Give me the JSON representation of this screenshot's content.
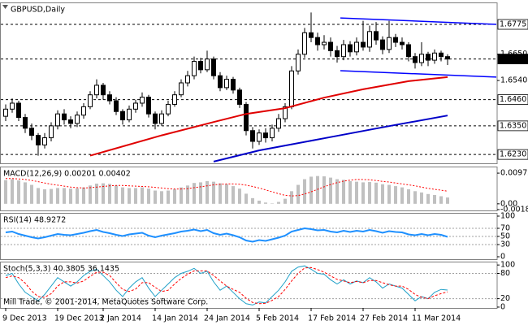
{
  "chart_data": [
    {
      "type": "candlestick",
      "title": "GBPUSD,Daily",
      "open": [
        1.639,
        1.642,
        1.6445,
        1.6385,
        1.634,
        1.631,
        1.627,
        1.63,
        1.635,
        1.64,
        1.6375,
        1.636,
        1.6395,
        1.643,
        1.648,
        1.652,
        1.648,
        1.6455,
        1.641,
        1.6375,
        1.642,
        1.6445,
        1.647,
        1.64,
        1.636,
        1.64,
        1.644,
        1.648,
        1.653,
        1.656,
        1.662,
        1.6585,
        1.663,
        1.656,
        1.651,
        1.6545,
        1.65,
        1.644,
        1.633,
        1.6285,
        1.632,
        1.63,
        1.634,
        1.638,
        1.643,
        1.658,
        1.665,
        1.674,
        1.672,
        1.669,
        1.67,
        1.6665,
        1.664,
        1.669,
        1.666,
        1.67,
        1.668,
        1.6745,
        1.671,
        1.667,
        1.672,
        1.67,
        1.669,
        1.664,
        1.6615,
        1.665,
        1.6625,
        1.6655,
        1.664
      ],
      "high": [
        1.644,
        1.6465,
        1.6455,
        1.64,
        1.636,
        1.632,
        1.632,
        1.6365,
        1.6415,
        1.642,
        1.639,
        1.641,
        1.6445,
        1.6495,
        1.6545,
        1.653,
        1.6495,
        1.647,
        1.642,
        1.6435,
        1.646,
        1.649,
        1.648,
        1.641,
        1.6415,
        1.6455,
        1.6495,
        1.6545,
        1.658,
        1.664,
        1.6635,
        1.6665,
        1.664,
        1.6575,
        1.656,
        1.6555,
        1.651,
        1.645,
        1.6345,
        1.6335,
        1.634,
        1.6355,
        1.64,
        1.6445,
        1.66,
        1.667,
        1.676,
        1.6825,
        1.674,
        1.673,
        1.672,
        1.6685,
        1.671,
        1.6705,
        1.672,
        1.679,
        1.677,
        1.6785,
        1.6725,
        1.679,
        1.6735,
        1.672,
        1.67,
        1.6655,
        1.67,
        1.666,
        1.667,
        1.6665,
        1.665
      ],
      "low": [
        1.637,
        1.6405,
        1.637,
        1.632,
        1.629,
        1.6225,
        1.6255,
        1.6285,
        1.6335,
        1.6355,
        1.634,
        1.6345,
        1.638,
        1.642,
        1.6465,
        1.646,
        1.644,
        1.6395,
        1.6355,
        1.6365,
        1.6405,
        1.643,
        1.6385,
        1.6335,
        1.635,
        1.639,
        1.643,
        1.647,
        1.6515,
        1.6545,
        1.657,
        1.6575,
        1.6545,
        1.6495,
        1.65,
        1.6485,
        1.6425,
        1.631,
        1.6255,
        1.627,
        1.628,
        1.6285,
        1.6325,
        1.6365,
        1.642,
        1.6565,
        1.6635,
        1.67,
        1.6665,
        1.667,
        1.664,
        1.6615,
        1.6625,
        1.664,
        1.6645,
        1.6665,
        1.666,
        1.669,
        1.665,
        1.6655,
        1.668,
        1.667,
        1.662,
        1.659,
        1.66,
        1.66,
        1.661,
        1.662,
        1.6605
      ],
      "close": [
        1.642,
        1.6445,
        1.6385,
        1.634,
        1.631,
        1.627,
        1.63,
        1.635,
        1.64,
        1.6375,
        1.636,
        1.6395,
        1.643,
        1.648,
        1.652,
        1.648,
        1.6455,
        1.641,
        1.6375,
        1.642,
        1.6445,
        1.647,
        1.64,
        1.636,
        1.64,
        1.644,
        1.648,
        1.653,
        1.656,
        1.662,
        1.6585,
        1.663,
        1.656,
        1.651,
        1.6545,
        1.65,
        1.644,
        1.633,
        1.6285,
        1.632,
        1.63,
        1.634,
        1.638,
        1.643,
        1.658,
        1.665,
        1.674,
        1.672,
        1.669,
        1.67,
        1.6665,
        1.664,
        1.669,
        1.666,
        1.67,
        1.668,
        1.6745,
        1.671,
        1.667,
        1.672,
        1.67,
        1.669,
        1.664,
        1.6615,
        1.665,
        1.6625,
        1.6655,
        1.664,
        1.663
      ],
      "ylim": [
        1.6193,
        1.6867
      ],
      "yticks": [
        {
          "value": 1.665,
          "label": "1.6650"
        },
        {
          "value": 1.654,
          "label": "1.6540"
        }
      ],
      "levels": [
        {
          "value": 1.6775,
          "label": "1.6775"
        },
        {
          "value": 1.663,
          "label": "1.6630",
          "current": true
        },
        {
          "value": 1.646,
          "label": "1.6460"
        },
        {
          "value": 1.635,
          "label": "1.6350"
        },
        {
          "value": 1.623,
          "label": "1.6230"
        }
      ],
      "series": [
        {
          "color": "#e00000",
          "x": [
            13,
            24,
            32,
            37,
            43,
            49,
            55,
            62,
            68
          ],
          "values": [
            1.6225,
            1.631,
            1.6366,
            1.64,
            1.6424,
            1.6468,
            1.6503,
            1.6537,
            1.6554
          ]
        },
        {
          "color": "#0000c8",
          "x": [
            32,
            39,
            49,
            59,
            68
          ],
          "values": [
            1.62,
            1.6247,
            1.6298,
            1.6349,
            1.6393
          ]
        }
      ],
      "trendlines": [
        {
          "color": "#0000ff",
          "x": [
            51.5,
            75.5
          ],
          "values": [
            1.6802,
            1.6775
          ]
        },
        {
          "color": "#0000ff",
          "x": [
            51.5,
            75.5
          ],
          "values": [
            1.6581,
            1.6554
          ]
        }
      ]
    },
    {
      "type": "macd",
      "title": "MACD(12,26,9) 0.00201 0.00402",
      "ylim": [
        -0.0021,
        0.0118
      ],
      "yticks": [
        0.00972,
        {
          "value": 0,
          "label": "0.00"
        },
        -0.00183
      ],
      "series": [
        {
          "color": "#c0c0c0",
          "style": "histogram",
          "values": [
            0.0075,
            0.0078,
            0.0074,
            0.0068,
            0.006,
            0.005,
            0.0046,
            0.0047,
            0.005,
            0.005,
            0.0048,
            0.0049,
            0.0052,
            0.0058,
            0.0064,
            0.0065,
            0.0063,
            0.0058,
            0.0052,
            0.005,
            0.005,
            0.0052,
            0.0048,
            0.0042,
            0.004,
            0.0042,
            0.0046,
            0.0052,
            0.0058,
            0.0066,
            0.0068,
            0.0072,
            0.007,
            0.0065,
            0.0062,
            0.0056,
            0.0048,
            0.0032,
            0.0018,
            0.001,
            0.0004,
            0.0001,
            0.0006,
            0.0016,
            0.004,
            0.006,
            0.0078,
            0.0086,
            0.0088,
            0.0087,
            0.0083,
            0.0078,
            0.0076,
            0.0072,
            0.007,
            0.0068,
            0.0069,
            0.0067,
            0.0062,
            0.006,
            0.0056,
            0.0052,
            0.0046,
            0.004,
            0.0036,
            0.0031,
            0.0028,
            0.0024,
            0.002
          ]
        },
        {
          "color": "#ff0000",
          "style": "dotted",
          "values": [
            0.008,
            0.008,
            0.0079,
            0.0077,
            0.0074,
            0.007,
            0.0066,
            0.0062,
            0.0059,
            0.0056,
            0.0053,
            0.0051,
            0.005,
            0.0051,
            0.0053,
            0.0055,
            0.0057,
            0.0058,
            0.0058,
            0.0057,
            0.0056,
            0.0055,
            0.0054,
            0.0052,
            0.005,
            0.0048,
            0.0047,
            0.0047,
            0.0048,
            0.0051,
            0.0054,
            0.0057,
            0.006,
            0.0062,
            0.0063,
            0.0063,
            0.0062,
            0.0059,
            0.0055,
            0.005,
            0.0044,
            0.0038,
            0.0032,
            0.0027,
            0.0025,
            0.0026,
            0.0031,
            0.0038,
            0.0046,
            0.0054,
            0.0061,
            0.0067,
            0.0072,
            0.0075,
            0.0077,
            0.0077,
            0.0076,
            0.0074,
            0.0071,
            0.0069,
            0.0066,
            0.0063,
            0.006,
            0.0057,
            0.0053,
            0.0049,
            0.0046,
            0.0043,
            0.004
          ]
        }
      ]
    },
    {
      "type": "line",
      "title": "RSI(14) 48.9272",
      "ylim": [
        -6,
        108
      ],
      "yticks": [
        100,
        70,
        50,
        30,
        0
      ],
      "levels": [
        70,
        50,
        30
      ],
      "series": [
        {
          "color": "#1e90ff",
          "style": "solid",
          "values": [
            60,
            62,
            56,
            52,
            48,
            45,
            48,
            52,
            56,
            54,
            53,
            56,
            59,
            63,
            66,
            61,
            58,
            54,
            51,
            55,
            57,
            59,
            52,
            48,
            52,
            55,
            58,
            62,
            64,
            67,
            63,
            66,
            58,
            54,
            57,
            53,
            48,
            40,
            37,
            41,
            39,
            43,
            47,
            52,
            62,
            66,
            70,
            68,
            65,
            66,
            62,
            60,
            64,
            61,
            64,
            62,
            66,
            63,
            59,
            63,
            61,
            60,
            55,
            53,
            56,
            53,
            56,
            54,
            48.9272
          ]
        }
      ]
    },
    {
      "type": "line",
      "title": "Stoch(5,3,3) 40.3805 36.1435",
      "annotation": "Mill Trade, © 2001-2014, MetaQuotes Software Corp.",
      "ylim": [
        -2,
        108
      ],
      "yticks": [
        100,
        80,
        20,
        0
      ],
      "levels": [
        80,
        20
      ],
      "xticks": [
        {
          "value": 0,
          "label": "9 Dec 2013"
        },
        {
          "value": 8,
          "label": "19 Dec 2013"
        },
        {
          "value": 15,
          "label": "2 Jan 2014"
        },
        {
          "value": 23,
          "label": "14 Jan 2014"
        },
        {
          "value": 31,
          "label": "24 Jan 2014"
        },
        {
          "value": 39,
          "label": "5 Feb 2014"
        },
        {
          "value": 47,
          "label": "17 Feb 2014"
        },
        {
          "value": 55,
          "label": "27 Feb 2014"
        },
        {
          "value": 63,
          "label": "11 Mar 2014"
        }
      ],
      "series": [
        {
          "color": "#20a0c8",
          "style": "solid",
          "values": [
            75,
            80,
            55,
            35,
            25,
            15,
            30,
            50,
            70,
            60,
            50,
            60,
            75,
            85,
            90,
            75,
            60,
            40,
            25,
            45,
            60,
            70,
            45,
            25,
            40,
            55,
            70,
            80,
            85,
            92,
            80,
            85,
            60,
            40,
            50,
            35,
            20,
            8,
            5,
            12,
            10,
            25,
            40,
            60,
            85,
            95,
            98,
            90,
            80,
            78,
            65,
            55,
            65,
            55,
            62,
            58,
            70,
            60,
            45,
            55,
            50,
            45,
            30,
            15,
            25,
            20,
            35,
            42,
            40.3805
          ]
        },
        {
          "color": "#ff0000",
          "style": "dotted",
          "values": [
            70,
            74,
            70,
            57,
            38,
            25,
            23,
            32,
            50,
            60,
            60,
            57,
            62,
            73,
            83,
            83,
            75,
            58,
            42,
            37,
            43,
            58,
            58,
            47,
            37,
            40,
            55,
            68,
            78,
            86,
            86,
            86,
            75,
            62,
            50,
            42,
            35,
            21,
            11,
            8,
            9,
            16,
            25,
            42,
            62,
            80,
            93,
            94,
            89,
            83,
            74,
            66,
            62,
            58,
            61,
            58,
            63,
            63,
            58,
            53,
            50,
            50,
            42,
            30,
            23,
            20,
            27,
            32,
            36.1435
          ]
        }
      ]
    }
  ]
}
